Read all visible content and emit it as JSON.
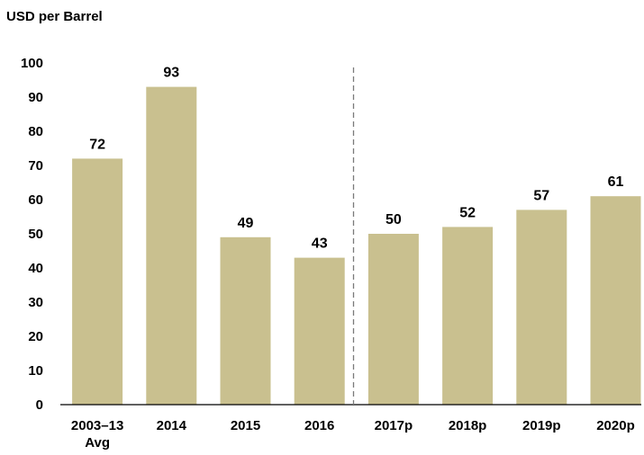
{
  "chart_data": {
    "type": "bar",
    "unit_label": "USD per Barrel",
    "categories": [
      [
        "2003–13",
        "Avg"
      ],
      [
        "2014"
      ],
      [
        "2015"
      ],
      [
        "2016"
      ],
      [
        "2017p"
      ],
      [
        "2018p"
      ],
      [
        "2019p"
      ],
      [
        "2020p"
      ]
    ],
    "values": [
      72,
      93,
      49,
      43,
      50,
      52,
      57,
      61
    ],
    "value_labels": [
      "72",
      "93",
      "49",
      "43",
      "50",
      "52",
      "57",
      "61"
    ],
    "ylim": [
      0,
      100
    ],
    "yticks": [
      "0",
      "10",
      "20",
      "30",
      "40",
      "50",
      "60",
      "70",
      "80",
      "90",
      "100"
    ],
    "grid": false,
    "legend": "none",
    "bar_color": "#c9c08f",
    "divider": "dashed line between 2016 and 2017p (projections)"
  }
}
